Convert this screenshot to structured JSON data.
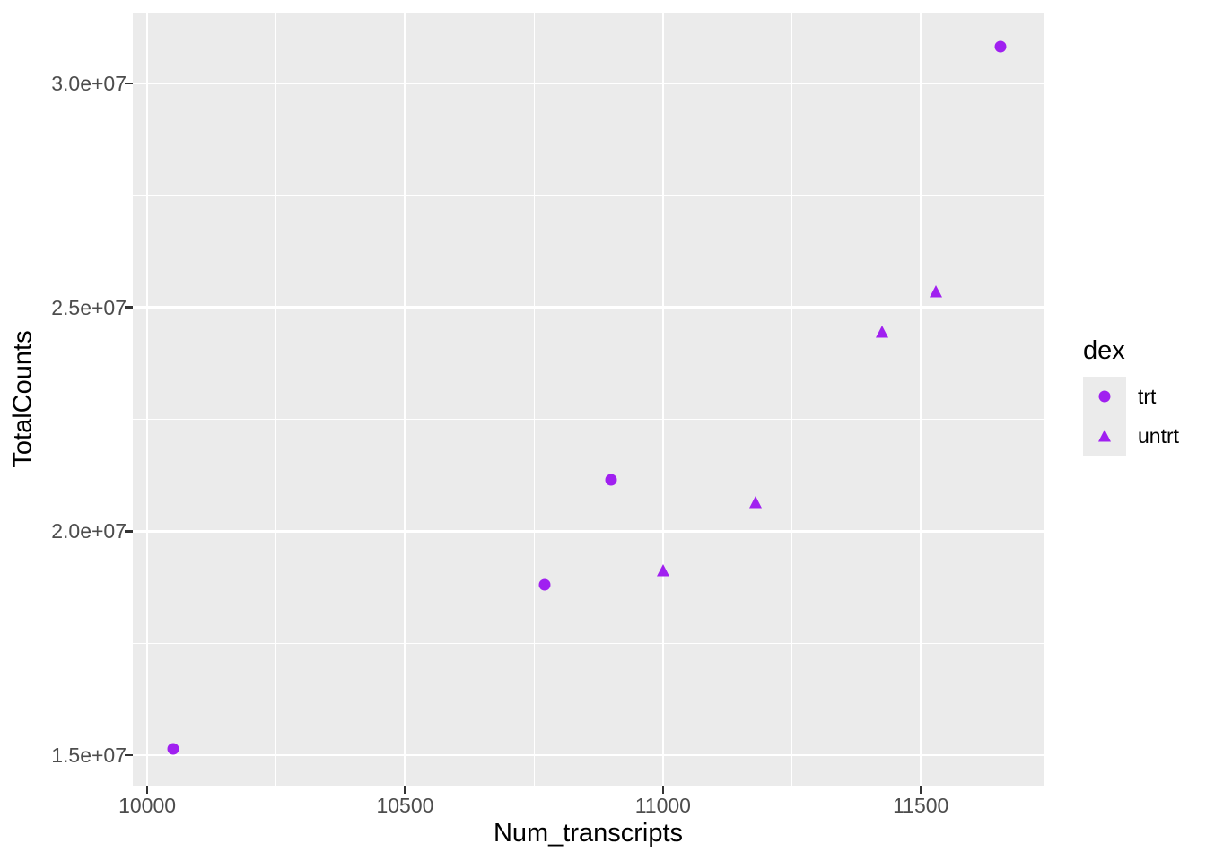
{
  "chart_data": {
    "type": "scatter",
    "title": "",
    "xlabel": "Num_transcripts",
    "ylabel": "TotalCounts",
    "point_color": "#A020F0",
    "panel_bg": "#EBEBEB",
    "grid_color": "#FFFFFF",
    "tick_color": "#333333",
    "tick_label_color": "#4D4D4D",
    "grid": true,
    "legend": {
      "title": "dex",
      "position": "right",
      "entries": [
        {
          "label": "trt",
          "shape": "circle"
        },
        {
          "label": "untrt",
          "shape": "triangle"
        }
      ]
    },
    "series": [
      {
        "name": "trt",
        "shape": "circle",
        "points": [
          [
            10050,
            15150000
          ],
          [
            10770,
            18800000
          ],
          [
            10900,
            21150000
          ],
          [
            11655,
            30820000
          ]
        ]
      },
      {
        "name": "untrt",
        "shape": "triangle",
        "points": [
          [
            11000,
            19130000
          ],
          [
            11180,
            20640000
          ],
          [
            11425,
            24450000
          ],
          [
            11530,
            25350000
          ]
        ]
      }
    ],
    "x_ticks": {
      "values": [
        10000,
        10500,
        11000,
        11500
      ],
      "labels": [
        "10000",
        "10500",
        "11000",
        "11500"
      ]
    },
    "y_ticks": {
      "values": [
        15000000,
        20000000,
        25000000,
        30000000
      ],
      "labels": [
        "1.5e+07",
        "2.0e+07",
        "2.5e+07",
        "3.0e+07"
      ]
    },
    "x_minor": [
      10250,
      10750,
      11250
    ],
    "y_minor": [
      17500000,
      22500000,
      27500000
    ],
    "x_domain": [
      9972,
      11738
    ],
    "y_domain": [
      14320000,
      31580000
    ]
  }
}
